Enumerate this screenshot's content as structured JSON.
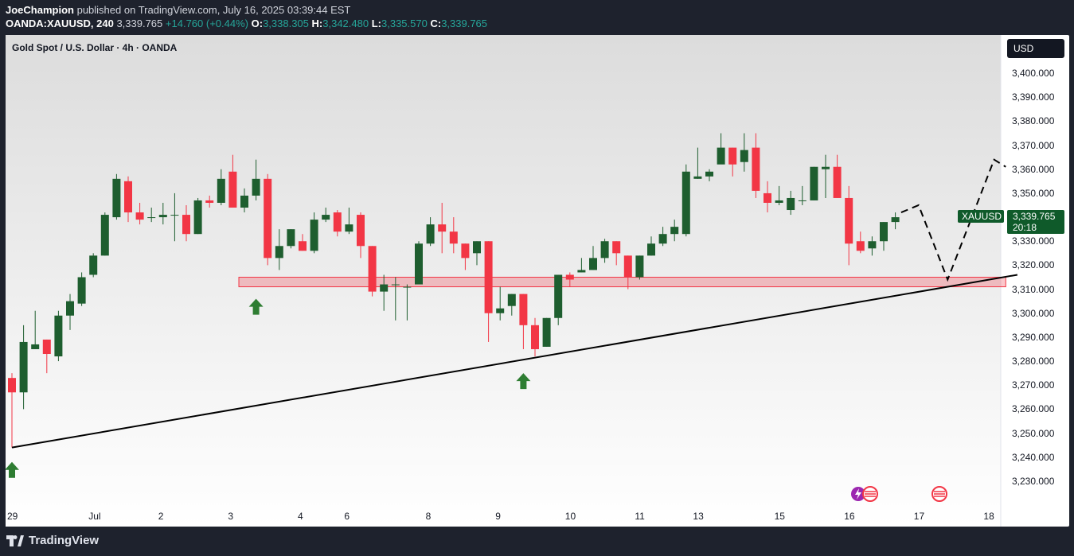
{
  "header": {
    "author": "JoeChampion",
    "published_text": "published on TradingView.com, July 16, 2025 03:39:44 EST",
    "symbol_interval": "OANDA:XAUUSD, 240",
    "last": "3,339.765",
    "change": "+14.760 (+0.44%)",
    "o_label": "O:",
    "o_value": "3,338.305",
    "h_label": "H:",
    "h_value": "3,342.480",
    "l_label": "L:",
    "l_value": "3,335.570",
    "c_label": "C:",
    "c_value": "3,339.765"
  },
  "chart_subtitle": "Gold Spot / U.S. Dollar · 4h · OANDA",
  "currency_button": "USD",
  "price_tag": {
    "symbol": "XAUUSD",
    "price": "3,339.765",
    "countdown": "20:18"
  },
  "footer": {
    "logo_text": "TradingView"
  },
  "colors": {
    "up": "#1e5e2f",
    "down": "#f23645",
    "zone": "#f23645",
    "arrow": "#2e7d32"
  },
  "chart_data": {
    "type": "candlestick",
    "title": "Gold Spot / U.S. Dollar · 4h · OANDA",
    "ylim": [
      3223,
      3406
    ],
    "y_ticks": [
      {
        "v": 3400,
        "label": "3,400.000"
      },
      {
        "v": 3390,
        "label": "3,390.000"
      },
      {
        "v": 3380,
        "label": "3,380.000"
      },
      {
        "v": 3370,
        "label": "3,370.000"
      },
      {
        "v": 3360,
        "label": "3,360.000"
      },
      {
        "v": 3350,
        "label": "3,350.000"
      },
      {
        "v": 3330,
        "label": "3,330.000"
      },
      {
        "v": 3320,
        "label": "3,320.000"
      },
      {
        "v": 3310,
        "label": "3,310.000"
      },
      {
        "v": 3300,
        "label": "3,300.000"
      },
      {
        "v": 3290,
        "label": "3,290.000"
      },
      {
        "v": 3280,
        "label": "3,280.000"
      },
      {
        "v": 3270,
        "label": "3,270.000"
      },
      {
        "v": 3260,
        "label": "3,260.000"
      },
      {
        "v": 3250,
        "label": "3,250.000"
      },
      {
        "v": 3240,
        "label": "3,240.000"
      },
      {
        "v": 3230,
        "label": "3,230.000"
      }
    ],
    "x_labels": [
      {
        "i": 0,
        "label": "29"
      },
      {
        "i": 7,
        "label": "Jul"
      },
      {
        "i": 13,
        "label": "2"
      },
      {
        "i": 19,
        "label": "3"
      },
      {
        "i": 25,
        "label": "4"
      },
      {
        "i": 29,
        "label": "6"
      },
      {
        "i": 36,
        "label": "8"
      },
      {
        "i": 42,
        "label": "9"
      },
      {
        "i": 48,
        "label": "10"
      },
      {
        "i": 54,
        "label": "11"
      },
      {
        "i": 59,
        "label": "13"
      },
      {
        "i": 66,
        "label": "15"
      },
      {
        "i": 72,
        "label": "16"
      },
      {
        "i": 78,
        "label": "17"
      },
      {
        "i": 84,
        "label": "18"
      }
    ],
    "candles": [
      [
        3273,
        3275,
        3244,
        3267
      ],
      [
        3267,
        3295,
        3260,
        3288
      ],
      [
        3285,
        3301,
        3285,
        3287
      ],
      [
        3289,
        3289,
        3275,
        3283
      ],
      [
        3282,
        3301,
        3280,
        3299
      ],
      [
        3299,
        3308,
        3293,
        3305
      ],
      [
        3304,
        3317,
        3303,
        3315
      ],
      [
        3316,
        3325,
        3315,
        3324
      ],
      [
        3324,
        3342,
        3324,
        3341
      ],
      [
        3340,
        3358,
        3339,
        3356
      ],
      [
        3355,
        3357,
        3338,
        3342
      ],
      [
        3342,
        3346,
        3337,
        3339
      ],
      [
        3340,
        3344,
        3338,
        3340
      ],
      [
        3340,
        3346,
        3337,
        3341
      ],
      [
        3341,
        3350,
        3330,
        3341
      ],
      [
        3341,
        3345,
        3330,
        3333
      ],
      [
        3333,
        3348,
        3333,
        3347
      ],
      [
        3347,
        3349,
        3344,
        3346
      ],
      [
        3346,
        3360,
        3345,
        3356
      ],
      [
        3359,
        3366,
        3344,
        3344
      ],
      [
        3344,
        3352,
        3342,
        3349
      ],
      [
        3349,
        3364,
        3347,
        3356
      ],
      [
        3356,
        3358,
        3320,
        3323
      ],
      [
        3323,
        3335,
        3318,
        3328
      ],
      [
        3328,
        3335,
        3327,
        3335
      ],
      [
        3330,
        3333,
        3326,
        3326
      ],
      [
        3326,
        3342,
        3325,
        3339
      ],
      [
        3339,
        3344,
        3338,
        3341
      ],
      [
        3342,
        3343,
        3332,
        3334
      ],
      [
        3334,
        3344,
        3333,
        3337
      ],
      [
        3341,
        3342,
        3323,
        3328
      ],
      [
        3328,
        3328,
        3307,
        3309
      ],
      [
        3309,
        3316,
        3301,
        3312
      ],
      [
        3312,
        3315,
        3297,
        3312
      ],
      [
        3311,
        3312,
        3297,
        3311
      ],
      [
        3312,
        3330,
        3312,
        3329
      ],
      [
        3329,
        3340,
        3328,
        3337
      ],
      [
        3337,
        3346,
        3325,
        3334
      ],
      [
        3334,
        3340,
        3325,
        3329
      ],
      [
        3329,
        3329,
        3318,
        3323
      ],
      [
        3325,
        3330,
        3320,
        3330
      ],
      [
        3330,
        3330,
        3288,
        3300
      ],
      [
        3300,
        3311,
        3297,
        3302
      ],
      [
        3303,
        3308,
        3299,
        3308
      ],
      [
        3308,
        3308,
        3285,
        3295
      ],
      [
        3295,
        3298,
        3282,
        3285
      ],
      [
        3286,
        3298,
        3286,
        3298
      ],
      [
        3298,
        3316,
        3295,
        3316
      ],
      [
        3316,
        3317,
        3311,
        3314
      ],
      [
        3317,
        3323,
        3317,
        3318
      ],
      [
        3318,
        3328,
        3318,
        3323
      ],
      [
        3323,
        3331,
        3321,
        3330
      ],
      [
        3330,
        3330,
        3320,
        3325
      ],
      [
        3324,
        3324,
        3310,
        3315
      ],
      [
        3315,
        3324,
        3314,
        3324
      ],
      [
        3324,
        3332,
        3324,
        3329
      ],
      [
        3329,
        3336,
        3328,
        3333
      ],
      [
        3333,
        3339,
        3330,
        3336
      ],
      [
        3333,
        3362,
        3332,
        3359
      ],
      [
        3356,
        3369,
        3356,
        3357
      ],
      [
        3357,
        3360,
        3355,
        3359
      ],
      [
        3362,
        3375,
        3363,
        3369
      ],
      [
        3369,
        3369,
        3357,
        3362
      ],
      [
        3363,
        3375,
        3359,
        3368
      ],
      [
        3369,
        3375,
        3348,
        3351
      ],
      [
        3350,
        3355,
        3342,
        3346
      ],
      [
        3346,
        3353,
        3345,
        3347
      ],
      [
        3343,
        3351,
        3341,
        3348
      ],
      [
        3347,
        3353,
        3345,
        3347
      ],
      [
        3347,
        3361,
        3347,
        3361
      ],
      [
        3360,
        3366,
        3348,
        3361
      ],
      [
        3361,
        3366,
        3348,
        3348
      ],
      [
        3348,
        3353,
        3320,
        3329
      ],
      [
        3330,
        3334,
        3325,
        3326
      ],
      [
        3327,
        3332,
        3324,
        3330
      ],
      [
        3330,
        3338,
        3326,
        3338
      ],
      [
        3338,
        3342,
        3335,
        3340
      ]
    ],
    "zone": {
      "from_i": 20,
      "to_i": 85.5,
      "low": 3311,
      "high": 3315
    },
    "trendline": [
      {
        "i": 0,
        "v": 3244
      },
      {
        "i": 86.5,
        "v": 3316
      }
    ],
    "projection": [
      {
        "i": 76.5,
        "v": 3342
      },
      {
        "i": 78,
        "v": 3345
      },
      {
        "i": 80.5,
        "v": 3314
      },
      {
        "i": 84.5,
        "v": 3364
      },
      {
        "i": 85.5,
        "v": 3361
      }
    ],
    "arrows": [
      {
        "i": 0,
        "v": 3238
      },
      {
        "i": 21,
        "v": 3306
      },
      {
        "i": 44,
        "v": 3275
      }
    ]
  }
}
